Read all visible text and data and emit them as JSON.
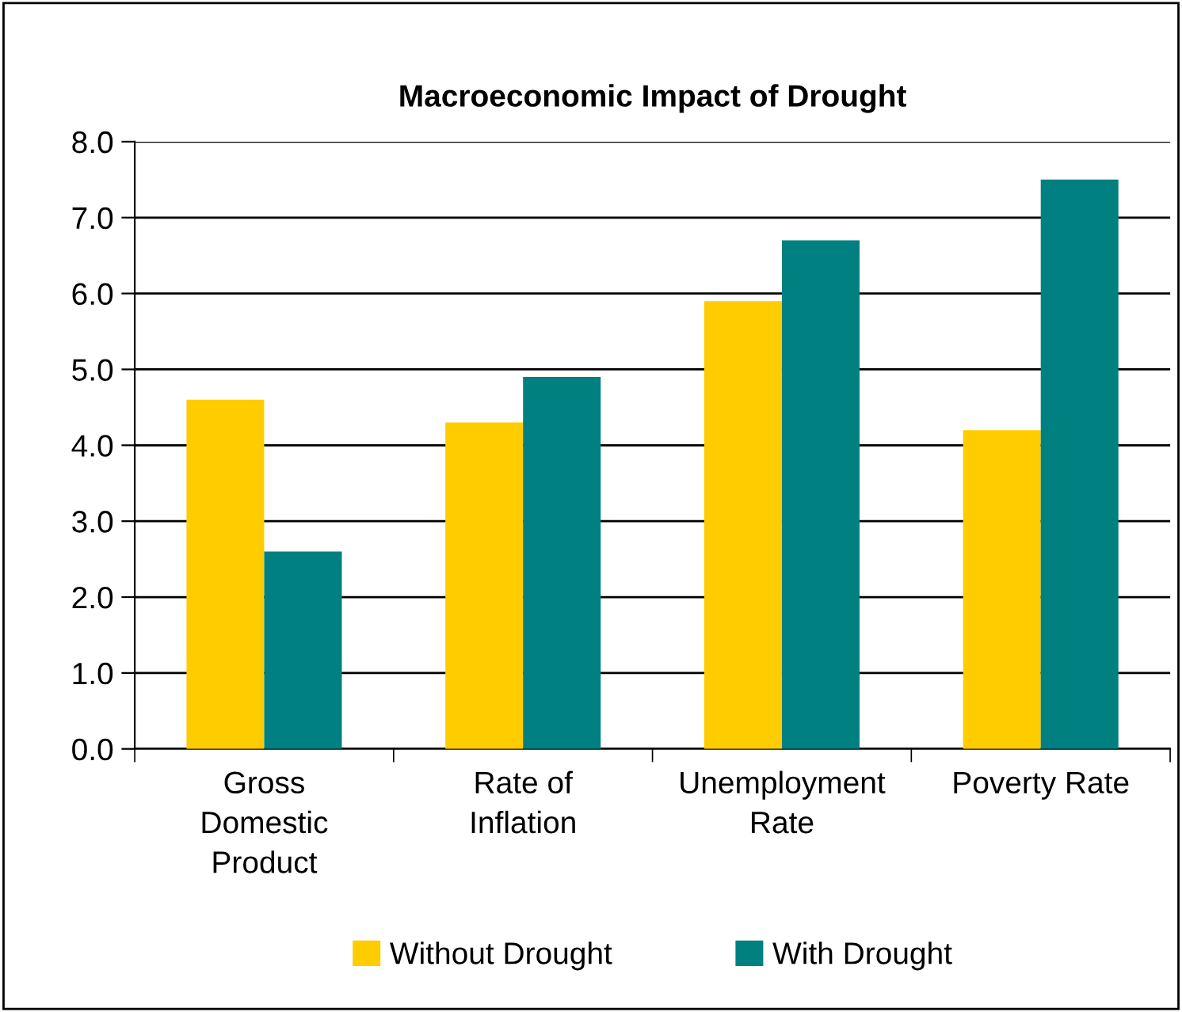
{
  "chart_data": {
    "type": "bar",
    "title": "Macroeconomic Impact of Drought",
    "categories": [
      "Gross\nDomestic\nProduct",
      "Rate of\nInflation",
      "Unemployment\nRate",
      "Poverty Rate"
    ],
    "series": [
      {
        "name": "Without Drought",
        "color": "#ffcc00",
        "values": [
          4.6,
          4.3,
          5.9,
          4.2
        ]
      },
      {
        "name": "With Drought",
        "color": "#008080",
        "values": [
          2.6,
          4.9,
          6.7,
          7.5
        ]
      }
    ],
    "ylim": [
      0,
      8
    ],
    "yticks": [
      {
        "value": 0,
        "label": "0.0"
      },
      {
        "value": 1,
        "label": "1.0"
      },
      {
        "value": 2,
        "label": "2.0"
      },
      {
        "value": 3,
        "label": "3.0"
      },
      {
        "value": 4,
        "label": "4.0"
      },
      {
        "value": 5,
        "label": "5.0"
      },
      {
        "value": 6,
        "label": "6.0"
      },
      {
        "value": 7,
        "label": "7.0"
      },
      {
        "value": 8,
        "label": "8.0"
      }
    ],
    "grid": "y",
    "legend": "bottom"
  }
}
